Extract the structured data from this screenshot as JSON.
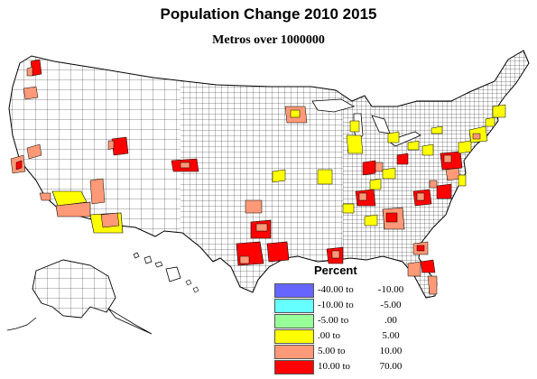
{
  "title": "Population Change 2010 2015",
  "subtitle": "Metros over 1000000",
  "legend": {
    "title": "Percent",
    "classes": [
      {
        "from": "-40.00 to",
        "to": "-10.00",
        "color": "#6666ff"
      },
      {
        "from": "-10.00 to",
        "to": "-5.00",
        "color": "#66ffff"
      },
      {
        "from": "-5.00 to",
        "to": ".00",
        "color": "#99ff99"
      },
      {
        "from": ".00 to",
        "to": "5.00",
        "color": "#ffff00"
      },
      {
        "from": "5.00 to",
        "to": "10.00",
        "color": "#ff9977"
      },
      {
        "from": "10.00 to",
        "to": "70.00",
        "color": "#ff0000"
      }
    ]
  },
  "map": {
    "region": "United States counties",
    "fill_color": "#ffffff",
    "border_color": "#000000",
    "highlighted_metros": [
      {
        "name": "Seattle",
        "class": "10.00 to 70.00"
      },
      {
        "name": "Portland",
        "class": "5.00 to 10.00"
      },
      {
        "name": "San Francisco Bay Area",
        "class": "5.00 to 10.00"
      },
      {
        "name": "Sacramento",
        "class": "5.00 to 10.00"
      },
      {
        "name": "Los Angeles",
        "class": ".00 to 5.00"
      },
      {
        "name": "Riverside",
        "class": "5.00 to 10.00"
      },
      {
        "name": "San Diego",
        "class": "5.00 to 10.00"
      },
      {
        "name": "Las Vegas",
        "class": "5.00 to 10.00"
      },
      {
        "name": "Phoenix",
        "class": ".00 to 5.00"
      },
      {
        "name": "Salt Lake City",
        "class": "10.00 to 70.00"
      },
      {
        "name": "Denver",
        "class": "10.00 to 70.00"
      },
      {
        "name": "Dallas",
        "class": "10.00 to 70.00"
      },
      {
        "name": "Austin",
        "class": "10.00 to 70.00"
      },
      {
        "name": "San Antonio",
        "class": "10.00 to 70.00"
      },
      {
        "name": "Houston",
        "class": "10.00 to 70.00"
      },
      {
        "name": "Oklahoma City",
        "class": "5.00 to 10.00"
      },
      {
        "name": "Minneapolis",
        "class": "5.00 to 10.00"
      },
      {
        "name": "Chicago",
        "class": ".00 to 5.00"
      },
      {
        "name": "Nashville",
        "class": "10.00 to 70.00"
      },
      {
        "name": "Atlanta",
        "class": "5.00 to 10.00"
      },
      {
        "name": "Charlotte",
        "class": "10.00 to 70.00"
      },
      {
        "name": "Raleigh",
        "class": "10.00 to 70.00"
      },
      {
        "name": "Washington DC",
        "class": "10.00 to 70.00"
      },
      {
        "name": "Orlando",
        "class": "10.00 to 70.00"
      },
      {
        "name": "Tampa",
        "class": "5.00 to 10.00"
      },
      {
        "name": "Miami",
        "class": "5.00 to 10.00"
      },
      {
        "name": "Jacksonville",
        "class": "5.00 to 10.00"
      },
      {
        "name": "New Orleans",
        "class": "10.00 to 70.00"
      }
    ]
  }
}
